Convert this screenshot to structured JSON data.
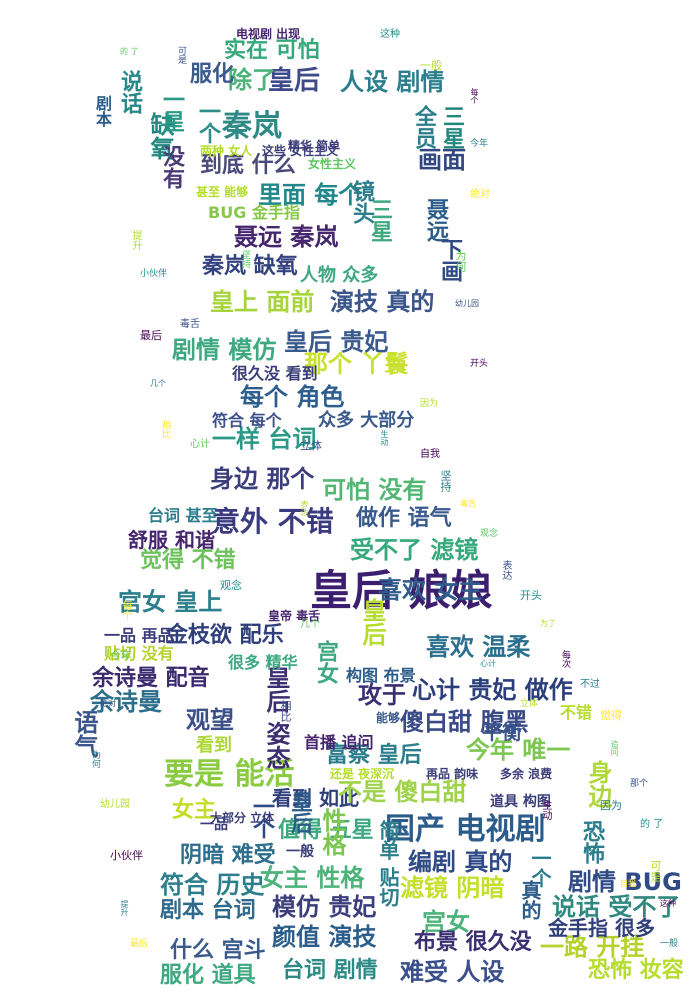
{
  "image_kind": "word cloud in the silhouette of a seated woman",
  "colors": {
    "background": "#ffffff",
    "palette": [
      "#440154",
      "#3b528b",
      "#21918c",
      "#5ec962",
      "#b5de2b",
      "#fde725"
    ]
  },
  "words": [
    {
      "text": "皇后 娘娘",
      "color": "#3b1f6e"
    },
    {
      "text": "国产 电视剧",
      "color": "#2c5d8a"
    },
    {
      "text": "意外 不错",
      "color": "#3a3a80"
    },
    {
      "text": "余诗曼",
      "color": "#2c6e8c"
    },
    {
      "text": "秦岚",
      "color": "#2f8a87"
    },
    {
      "text": "缺氧",
      "color": "#22877f"
    },
    {
      "text": "说话",
      "color": "#27888a"
    },
    {
      "text": "实在 可怕",
      "color": "#35a87c"
    },
    {
      "text": "皇后",
      "color": "#3f4a8a"
    },
    {
      "text": "除了",
      "color": "#4db37a"
    },
    {
      "text": "人设 剧情",
      "color": "#2a7e8d"
    },
    {
      "text": "服化",
      "color": "#3b5a8c"
    },
    {
      "text": "画面",
      "color": "#30477f"
    },
    {
      "text": "到底 什么",
      "color": "#4a4a7a"
    },
    {
      "text": "里面 每个",
      "color": "#22878a"
    },
    {
      "text": "聂远 秦岚",
      "color": "#46256f"
    },
    {
      "text": "秦岚 缺氧",
      "color": "#34437f"
    },
    {
      "text": "演技 真的",
      "color": "#3a558c"
    },
    {
      "text": "皇上 面前",
      "color": "#a5d53a"
    },
    {
      "text": "剧情 模仿",
      "color": "#3ea880"
    },
    {
      "text": "皇后 贵妃",
      "color": "#3b5a8c"
    },
    {
      "text": "那个 丫鬟",
      "color": "#c9e12c"
    },
    {
      "text": "每个 角色",
      "color": "#2d5e8e"
    },
    {
      "text": "一样 台词",
      "color": "#2a9a86"
    },
    {
      "text": "身边 那个",
      "color": "#3b3e7a"
    },
    {
      "text": "可怕 没有",
      "color": "#54b673"
    },
    {
      "text": "做作 语气",
      "color": "#3b5a8c"
    },
    {
      "text": "受不了 滤镜",
      "color": "#35a87c"
    },
    {
      "text": "觉得 不错",
      "color": "#6dc25c"
    },
    {
      "text": "宫女 皇上",
      "color": "#2c7e8d"
    },
    {
      "text": "金枝欲 配乐",
      "color": "#2f3f7a"
    },
    {
      "text": "喜欢 女主",
      "color": "#2f5c8a"
    },
    {
      "text": "喜欢 温柔",
      "color": "#2a6f8e"
    },
    {
      "text": "余诗曼 配音",
      "color": "#3a2a70"
    },
    {
      "text": "心计 贵妃 做作",
      "color": "#2c3f7c"
    },
    {
      "text": "攻于",
      "color": "#3b2f72"
    },
    {
      "text": "傻白甜 腹黑",
      "color": "#3a4a86"
    },
    {
      "text": "观望",
      "color": "#3b4f8a"
    },
    {
      "text": "要是 能活",
      "color": "#8acb40"
    },
    {
      "text": "富察 皇后",
      "color": "#2a7e8d"
    },
    {
      "text": "今年 唯一",
      "color": "#7cc651"
    },
    {
      "text": "看到 如此",
      "color": "#2f3f7a"
    },
    {
      "text": "不是 傻白甜",
      "color": "#9ed34a"
    },
    {
      "text": "值得 五星",
      "color": "#3ea880"
    },
    {
      "text": "阴暗 难受",
      "color": "#2c6e8c"
    },
    {
      "text": "编剧 真的",
      "color": "#2f4a86"
    },
    {
      "text": "滤镜 阴暗",
      "color": "#c4df2c"
    },
    {
      "text": "符合 历史",
      "color": "#2c7e8d"
    },
    {
      "text": "女主 性格",
      "color": "#4eb37a"
    },
    {
      "text": "剧本 台词",
      "color": "#2f6a8c"
    },
    {
      "text": "模仿 贵妃",
      "color": "#3b3e7a"
    },
    {
      "text": "宫女",
      "color": "#4db37a"
    },
    {
      "text": "剧情 BUG",
      "color": "#2f4a86"
    },
    {
      "text": "说话 受不了",
      "color": "#30897f"
    },
    {
      "text": "什么 宫斗",
      "color": "#3b5a8c"
    },
    {
      "text": "颜值 演技",
      "color": "#2c5d8a"
    },
    {
      "text": "布景 很久没",
      "color": "#3b2f72"
    },
    {
      "text": "一路 开挂",
      "color": "#b5d12c"
    },
    {
      "text": "服化 道具",
      "color": "#3ea880"
    },
    {
      "text": "台词 剧情",
      "color": "#2c8a87"
    },
    {
      "text": "难受 人设",
      "color": "#3b4f8a"
    },
    {
      "text": "恐怖 妆容",
      "color": "#b6dc2e"
    },
    {
      "text": "金手指 很多",
      "color": "#2f3f7a"
    },
    {
      "text": "舒服 和谐",
      "color": "#46256f"
    },
    {
      "text": "BUG 金手指",
      "color": "#88c848"
    },
    {
      "text": "没有",
      "color": "#4a3a78"
    },
    {
      "text": "一个",
      "color": "#2a8f8a"
    },
    {
      "text": "女主",
      "color": "#c5dc2a"
    },
    {
      "text": "性格",
      "color": "#7cc651"
    },
    {
      "text": "平衡",
      "color": "#3a558c"
    },
    {
      "text": "三星",
      "color": "#3ea880"
    },
    {
      "text": "聂远",
      "color": "#2c5d8a"
    },
    {
      "text": "镜头",
      "color": "#2c7e8d"
    },
    {
      "text": "全员",
      "color": "#2c7e8d"
    },
    {
      "text": "下画",
      "color": "#2f4a86"
    },
    {
      "text": "三星",
      "color": "#22877f"
    },
    {
      "text": "一星",
      "color": "#2a9a86"
    },
    {
      "text": "皇后 姿态",
      "color": "#3b2f72"
    },
    {
      "text": "语气",
      "color": "#3a558c"
    },
    {
      "text": "身边",
      "color": "#aed837"
    },
    {
      "text": "皇后",
      "color": "#b6dc2e"
    },
    {
      "text": "一个",
      "color": "#2f4a86"
    },
    {
      "text": "剧本",
      "color": "#2c5d8a"
    },
    {
      "text": "皇后",
      "color": "#2c5d8a"
    },
    {
      "text": "恐怖",
      "color": "#2c7e8d"
    },
    {
      "text": "宫女",
      "color": "#3ea880"
    },
    {
      "text": "一个",
      "color": "#2c7e8d"
    },
    {
      "text": "真的",
      "color": "#2c5d8a"
    },
    {
      "text": "简单 贴切",
      "color": "#2c7e8d"
    },
    {
      "text": "众多 大部分",
      "color": "#3b5a8c"
    },
    {
      "text": "符合 每个",
      "color": "#3b4f8a"
    },
    {
      "text": "很久没 看到",
      "color": "#3b3e7a"
    },
    {
      "text": "人物 众多",
      "color": "#3ea880"
    },
    {
      "text": "台词 甚至",
      "color": "#2c7e8d"
    },
    {
      "text": "一品 再品",
      "color": "#3b3e7a"
    },
    {
      "text": "贴切 没有",
      "color": "#b5d12c"
    },
    {
      "text": "很多 精华",
      "color": "#3ea880"
    },
    {
      "text": "构图 布景",
      "color": "#2c5d8a"
    },
    {
      "text": "看到",
      "color": "#aed837"
    },
    {
      "text": "不错",
      "color": "#b6dc2e"
    },
    {
      "text": "首播 追问",
      "color": "#46256f"
    },
    {
      "text": "女性主义",
      "color": "#5ec962"
    },
    {
      "text": "这些 女性主义",
      "color": "#3b3e7a"
    },
    {
      "text": "两种 女人",
      "color": "#b5de2b"
    },
    {
      "text": "甚至 能够",
      "color": "#b5de2b"
    },
    {
      "text": "精华 简单",
      "color": "#3b3e7a"
    },
    {
      "text": "能够",
      "color": "#3b5a8c"
    },
    {
      "text": "一品",
      "color": "#3b3e7a"
    },
    {
      "text": "大部分 立体",
      "color": "#3b3e7a"
    },
    {
      "text": "还是 夜深沉",
      "color": "#b5de2b"
    },
    {
      "text": "再品 韵味",
      "color": "#3b3e7a"
    },
    {
      "text": "多余 浪费",
      "color": "#3b3e7a"
    },
    {
      "text": "道具 构图",
      "color": "#3b3e7a"
    },
    {
      "text": "一般",
      "color": "#3b3e7a"
    },
    {
      "text": "皇帝 毒舌",
      "color": "#46256f"
    },
    {
      "text": "电视剧 出现",
      "color": "#46256f"
    }
  ]
}
